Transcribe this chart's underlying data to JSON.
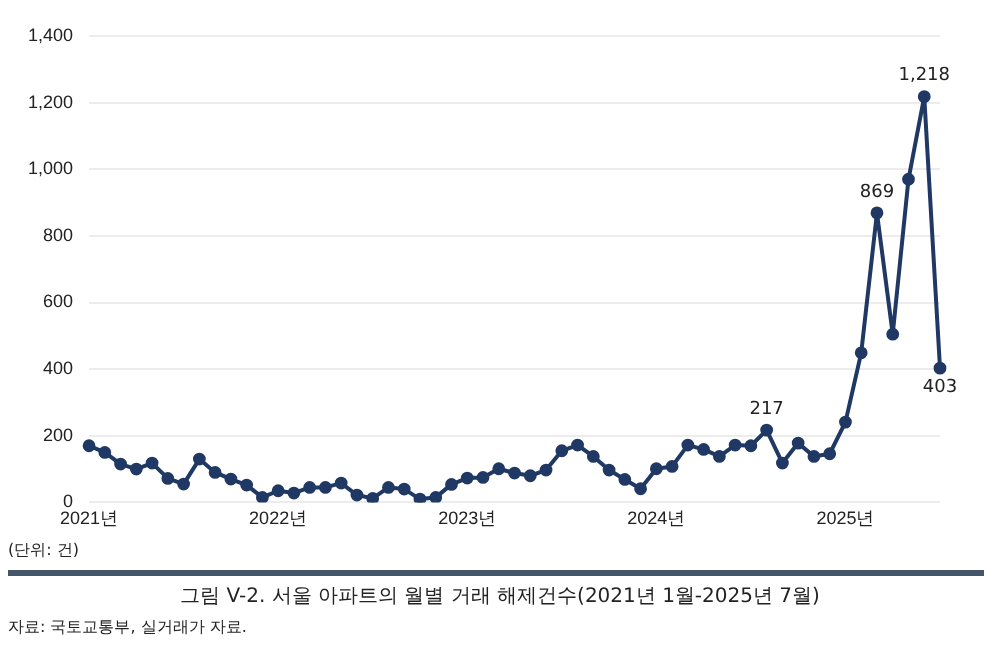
{
  "chart_data": {
    "type": "line",
    "title": "그림 V-2. 서울 아파트의 월별 거래 해제건수(2021년 1월-2025년 7월)",
    "annotations": [
      "(단위: 건)",
      "자료: 국토교통부, 실거래가 자료."
    ],
    "categories": [
      "2021년",
      null,
      null,
      null,
      null,
      null,
      null,
      null,
      null,
      null,
      null,
      null,
      "2022년",
      null,
      null,
      null,
      null,
      null,
      null,
      null,
      null,
      null,
      null,
      null,
      "2023년",
      null,
      null,
      null,
      null,
      null,
      null,
      null,
      null,
      null,
      null,
      null,
      "2024년",
      null,
      null,
      null,
      null,
      null,
      null,
      null,
      null,
      null,
      null,
      null,
      "2025년",
      null,
      null,
      null,
      null,
      null,
      null
    ],
    "series": [
      {
        "color": "#1f3864",
        "values": [
          170,
          150,
          115,
          100,
          118,
          72,
          55,
          130,
          90,
          70,
          52,
          15,
          35,
          28,
          45,
          45,
          58,
          22,
          12,
          45,
          40,
          10,
          15,
          54,
          73,
          75,
          101,
          88,
          80,
          97,
          155,
          172,
          138,
          97,
          69,
          41,
          101,
          108,
          172,
          159,
          138,
          172,
          170,
          217,
          118,
          178,
          138,
          146,
          241,
          449,
          869,
          505,
          970,
          1218,
          403
        ],
        "value_labels": [
          null,
          null,
          null,
          null,
          null,
          null,
          null,
          null,
          null,
          null,
          null,
          null,
          null,
          null,
          null,
          null,
          null,
          null,
          null,
          null,
          null,
          null,
          null,
          null,
          null,
          null,
          null,
          null,
          null,
          null,
          null,
          null,
          null,
          null,
          null,
          null,
          null,
          null,
          null,
          null,
          null,
          null,
          null,
          "217",
          null,
          null,
          null,
          null,
          null,
          null,
          "869",
          null,
          null,
          "1,218",
          "403"
        ]
      }
    ],
    "ylim": [
      0,
      1400
    ],
    "yticks": [
      0,
      200,
      400,
      600,
      800,
      {
        "value": 1000,
        "label": "1,000"
      },
      {
        "value": 1200,
        "label": "1,200"
      },
      {
        "value": 1400,
        "label": "1,400"
      }
    ],
    "grid": "y",
    "legend": false,
    "marker": "circle",
    "line_style": "solid"
  }
}
